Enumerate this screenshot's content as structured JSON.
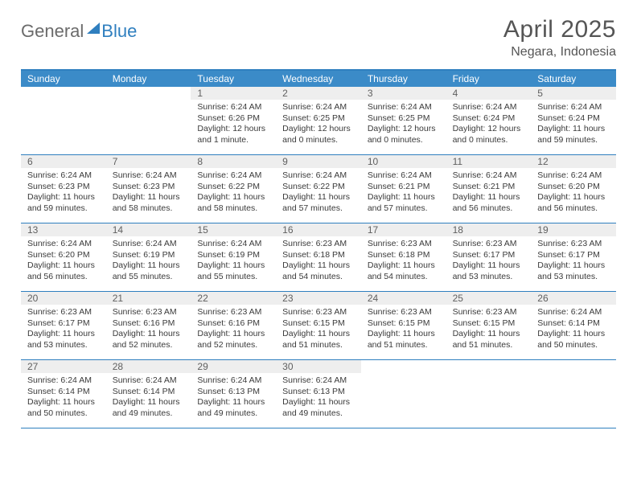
{
  "logo": {
    "part1": "General",
    "part2": "Blue"
  },
  "title": "April 2025",
  "location": "Negara, Indonesia",
  "header_color": "#3b8bc8",
  "border_color": "#2f7fbf",
  "daynum_bg": "#eeeeee",
  "background": "#ffffff",
  "text_color": "#333333",
  "fontsize_title": 30,
  "fontsize_location": 16,
  "fontsize_dayheader": 12,
  "fontsize_daynum": 12,
  "fontsize_body": 10.5,
  "day_names": [
    "Sunday",
    "Monday",
    "Tuesday",
    "Wednesday",
    "Thursday",
    "Friday",
    "Saturday"
  ],
  "weeks": [
    [
      null,
      null,
      {
        "n": "1",
        "sr": "6:24 AM",
        "ss": "6:26 PM",
        "dl": "12 hours and 1 minute."
      },
      {
        "n": "2",
        "sr": "6:24 AM",
        "ss": "6:25 PM",
        "dl": "12 hours and 0 minutes."
      },
      {
        "n": "3",
        "sr": "6:24 AM",
        "ss": "6:25 PM",
        "dl": "12 hours and 0 minutes."
      },
      {
        "n": "4",
        "sr": "6:24 AM",
        "ss": "6:24 PM",
        "dl": "12 hours and 0 minutes."
      },
      {
        "n": "5",
        "sr": "6:24 AM",
        "ss": "6:24 PM",
        "dl": "11 hours and 59 minutes."
      }
    ],
    [
      {
        "n": "6",
        "sr": "6:24 AM",
        "ss": "6:23 PM",
        "dl": "11 hours and 59 minutes."
      },
      {
        "n": "7",
        "sr": "6:24 AM",
        "ss": "6:23 PM",
        "dl": "11 hours and 58 minutes."
      },
      {
        "n": "8",
        "sr": "6:24 AM",
        "ss": "6:22 PM",
        "dl": "11 hours and 58 minutes."
      },
      {
        "n": "9",
        "sr": "6:24 AM",
        "ss": "6:22 PM",
        "dl": "11 hours and 57 minutes."
      },
      {
        "n": "10",
        "sr": "6:24 AM",
        "ss": "6:21 PM",
        "dl": "11 hours and 57 minutes."
      },
      {
        "n": "11",
        "sr": "6:24 AM",
        "ss": "6:21 PM",
        "dl": "11 hours and 56 minutes."
      },
      {
        "n": "12",
        "sr": "6:24 AM",
        "ss": "6:20 PM",
        "dl": "11 hours and 56 minutes."
      }
    ],
    [
      {
        "n": "13",
        "sr": "6:24 AM",
        "ss": "6:20 PM",
        "dl": "11 hours and 56 minutes."
      },
      {
        "n": "14",
        "sr": "6:24 AM",
        "ss": "6:19 PM",
        "dl": "11 hours and 55 minutes."
      },
      {
        "n": "15",
        "sr": "6:24 AM",
        "ss": "6:19 PM",
        "dl": "11 hours and 55 minutes."
      },
      {
        "n": "16",
        "sr": "6:23 AM",
        "ss": "6:18 PM",
        "dl": "11 hours and 54 minutes."
      },
      {
        "n": "17",
        "sr": "6:23 AM",
        "ss": "6:18 PM",
        "dl": "11 hours and 54 minutes."
      },
      {
        "n": "18",
        "sr": "6:23 AM",
        "ss": "6:17 PM",
        "dl": "11 hours and 53 minutes."
      },
      {
        "n": "19",
        "sr": "6:23 AM",
        "ss": "6:17 PM",
        "dl": "11 hours and 53 minutes."
      }
    ],
    [
      {
        "n": "20",
        "sr": "6:23 AM",
        "ss": "6:17 PM",
        "dl": "11 hours and 53 minutes."
      },
      {
        "n": "21",
        "sr": "6:23 AM",
        "ss": "6:16 PM",
        "dl": "11 hours and 52 minutes."
      },
      {
        "n": "22",
        "sr": "6:23 AM",
        "ss": "6:16 PM",
        "dl": "11 hours and 52 minutes."
      },
      {
        "n": "23",
        "sr": "6:23 AM",
        "ss": "6:15 PM",
        "dl": "11 hours and 51 minutes."
      },
      {
        "n": "24",
        "sr": "6:23 AM",
        "ss": "6:15 PM",
        "dl": "11 hours and 51 minutes."
      },
      {
        "n": "25",
        "sr": "6:23 AM",
        "ss": "6:15 PM",
        "dl": "11 hours and 51 minutes."
      },
      {
        "n": "26",
        "sr": "6:24 AM",
        "ss": "6:14 PM",
        "dl": "11 hours and 50 minutes."
      }
    ],
    [
      {
        "n": "27",
        "sr": "6:24 AM",
        "ss": "6:14 PM",
        "dl": "11 hours and 50 minutes."
      },
      {
        "n": "28",
        "sr": "6:24 AM",
        "ss": "6:14 PM",
        "dl": "11 hours and 49 minutes."
      },
      {
        "n": "29",
        "sr": "6:24 AM",
        "ss": "6:13 PM",
        "dl": "11 hours and 49 minutes."
      },
      {
        "n": "30",
        "sr": "6:24 AM",
        "ss": "6:13 PM",
        "dl": "11 hours and 49 minutes."
      },
      null,
      null,
      null
    ]
  ],
  "labels": {
    "sunrise": "Sunrise:",
    "sunset": "Sunset:",
    "daylight": "Daylight:"
  }
}
